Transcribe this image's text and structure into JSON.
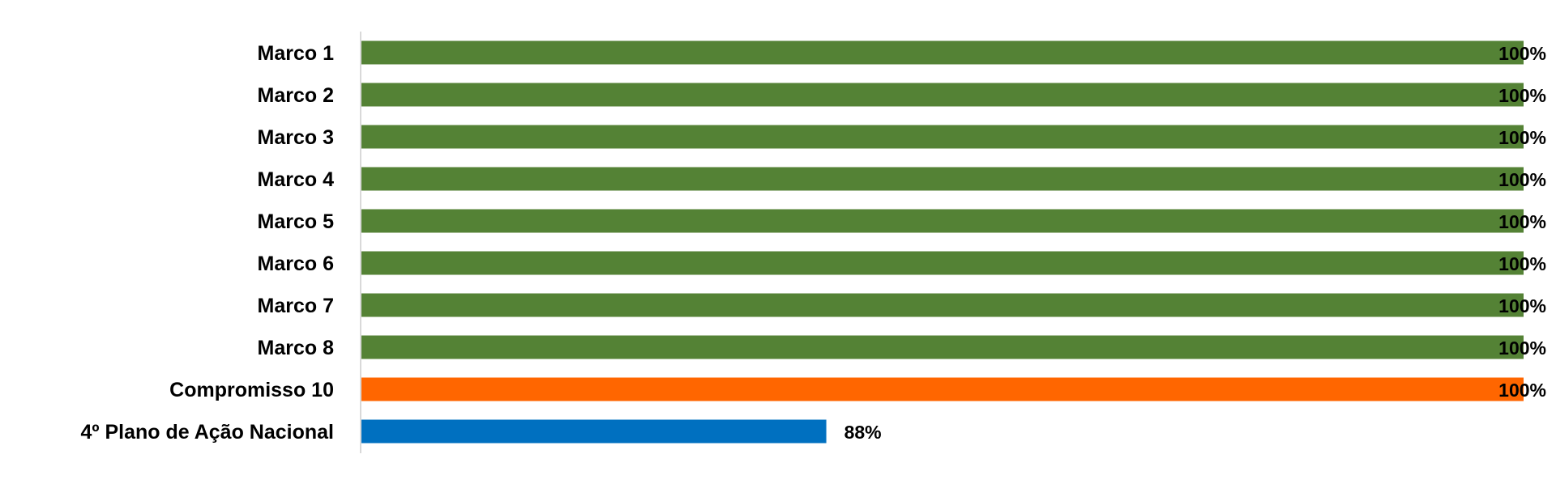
{
  "chart_data": {
    "type": "bar",
    "orientation": "horizontal",
    "categories": [
      "Marco 1",
      "Marco 2",
      "Marco 3",
      "Marco 4",
      "Marco 5",
      "Marco 6",
      "Marco 7",
      "Marco 8",
      "Compromisso 10",
      "4º Plano de Ação Nacional"
    ],
    "values": [
      100,
      100,
      100,
      100,
      100,
      100,
      100,
      100,
      100,
      88
    ],
    "data_labels": [
      "100%",
      "100%",
      "100%",
      "100%",
      "100%",
      "100%",
      "100%",
      "100%",
      "100%",
      "88%"
    ],
    "colors": [
      "#548235",
      "#548235",
      "#548235",
      "#548235",
      "#548235",
      "#548235",
      "#548235",
      "#548235",
      "#FF6600",
      "#0070C0"
    ],
    "unit": "%",
    "title": "",
    "xlabel": "",
    "ylabel": "",
    "grid": false,
    "legend": "none"
  }
}
